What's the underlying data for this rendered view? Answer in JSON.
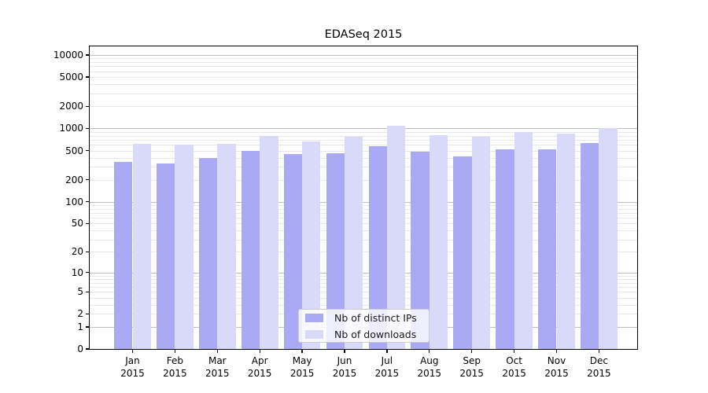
{
  "title": "EDASeq 2015",
  "chart_data": {
    "type": "bar",
    "title": "EDASeq 2015",
    "year_label": "2015",
    "categories": [
      "Jan",
      "Feb",
      "Mar",
      "Apr",
      "May",
      "Jun",
      "Jul",
      "Aug",
      "Sep",
      "Oct",
      "Nov",
      "Dec"
    ],
    "series": [
      {
        "name": "Nb of distinct IPs",
        "color": "#a9a9f4",
        "values": [
          350,
          335,
          400,
          500,
          450,
          455,
          580,
          485,
          415,
          515,
          520,
          635
        ]
      },
      {
        "name": "Nb of downloads",
        "color": "#d9d9f9",
        "values": [
          620,
          610,
          625,
          800,
          670,
          770,
          1080,
          805,
          780,
          900,
          860,
          1000
        ]
      }
    ],
    "y_ticks": [
      10000,
      5000,
      2000,
      1000,
      500,
      200,
      100,
      50,
      20,
      10,
      5,
      2,
      1,
      0
    ],
    "y_scale": "log10(1+x)",
    "ylim": [
      0,
      13000
    ],
    "grid": "horizontal, major at powers of 10, light minors at 2-9 multiples",
    "legend_position": "lower-center",
    "colors": {
      "grid_major": "#bfbfbf",
      "grid_minor": "#e8e8e8",
      "frame": "#000000"
    }
  }
}
